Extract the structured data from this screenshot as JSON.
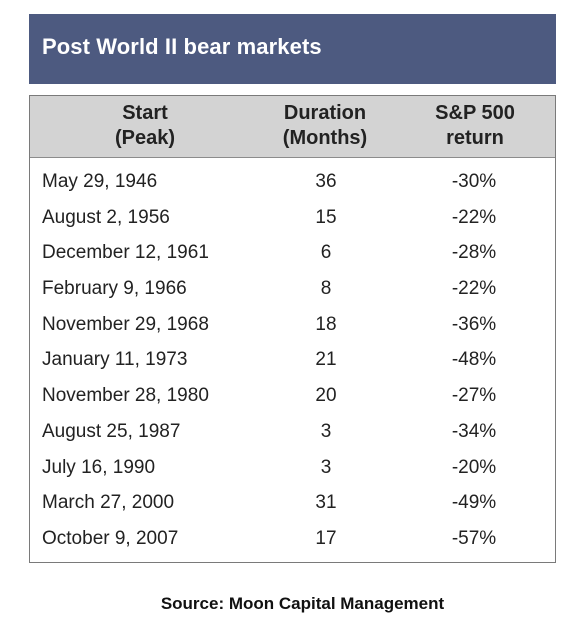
{
  "title": "Post World II bear markets",
  "headers": {
    "start": [
      "Start",
      "(Peak)"
    ],
    "duration": [
      "Duration",
      "(Months)"
    ],
    "return": [
      "S&P 500",
      "return"
    ]
  },
  "rows": [
    {
      "start": "May 29, 1946",
      "duration": "36",
      "return": "-30%"
    },
    {
      "start": "August 2, 1956",
      "duration": "15",
      "return": "-22%"
    },
    {
      "start": "December 12, 1961",
      "duration": "6",
      "return": "-28%"
    },
    {
      "start": "February 9, 1966",
      "duration": "8",
      "return": "-22%"
    },
    {
      "start": "November 29, 1968",
      "duration": "18",
      "return": "-36%"
    },
    {
      "start": "January 11, 1973",
      "duration": "21",
      "return": "-48%"
    },
    {
      "start": "November 28, 1980",
      "duration": "20",
      "return": "-27%"
    },
    {
      "start": "August 25, 1987",
      "duration": "3",
      "return": "-34%"
    },
    {
      "start": "July 16, 1990",
      "duration": "3",
      "return": "-20%"
    },
    {
      "start": "March 27, 2000",
      "duration": "31",
      "return": "-49%"
    },
    {
      "start": "October 9, 2007",
      "duration": "17",
      "return": "-57%"
    }
  ],
  "source": "Source: Moon Capital Management",
  "colors": {
    "title_bar": "#4d5a80",
    "title_text": "#ffffff",
    "header_bg": "#d3d3d3",
    "border": "#7a7a7a"
  },
  "chart_data": {
    "type": "table",
    "title": "Post World II bear markets",
    "columns": [
      "Start (Peak)",
      "Duration (Months)",
      "S&P 500 return"
    ],
    "rows": [
      [
        "May 29, 1946",
        36,
        -30
      ],
      [
        "August 2, 1956",
        15,
        -22
      ],
      [
        "December 12, 1961",
        6,
        -28
      ],
      [
        "February 9, 1966",
        8,
        -22
      ],
      [
        "November 29, 1968",
        18,
        -36
      ],
      [
        "January 11, 1973",
        21,
        -48
      ],
      [
        "November 28, 1980",
        20,
        -27
      ],
      [
        "August 25, 1987",
        3,
        -34
      ],
      [
        "July 16, 1990",
        3,
        -20
      ],
      [
        "March 27, 2000",
        31,
        -49
      ],
      [
        "October 9, 2007",
        17,
        -57
      ]
    ],
    "units": {
      "duration": "months",
      "return": "%"
    },
    "source": "Source: Moon Capital Management"
  }
}
